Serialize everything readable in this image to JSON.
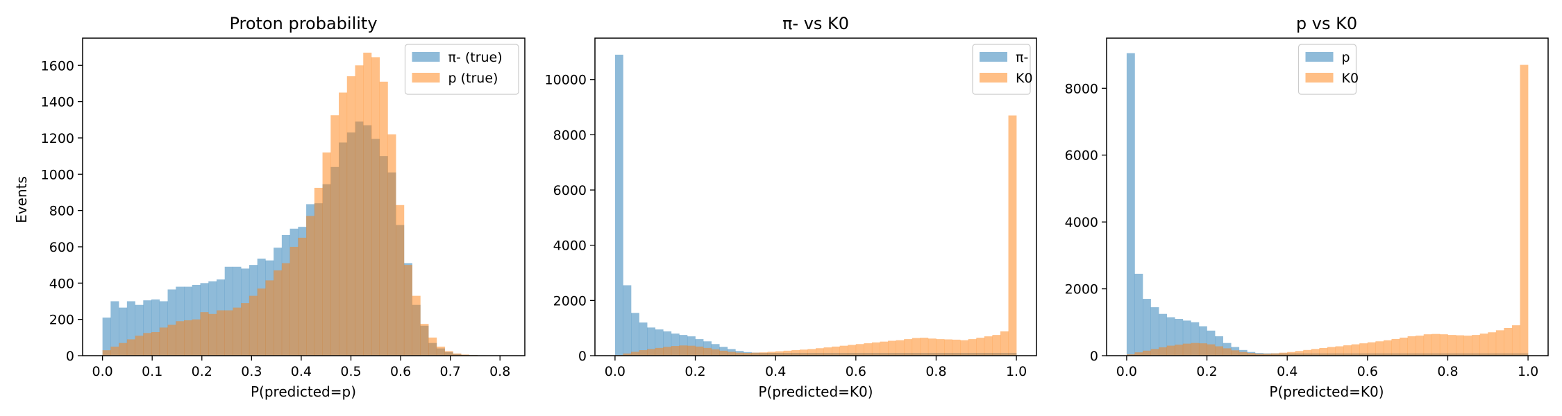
{
  "colors": {
    "series1": "#1f77b4",
    "series2": "#ff7f0e",
    "alpha": 0.5
  },
  "chart_data": [
    {
      "type": "bar",
      "title": "Proton probability",
      "xlabel": "P(predicted=p)",
      "ylabel": "Events",
      "xlim": [
        -0.04,
        0.85
      ],
      "ylim": [
        0,
        1750
      ],
      "xticks": [
        0.0,
        0.1,
        0.2,
        0.3,
        0.4,
        0.5,
        0.6,
        0.7,
        0.8
      ],
      "xtick_labels": [
        "0.0",
        "0.1",
        "0.2",
        "0.3",
        "0.4",
        "0.5",
        "0.6",
        "0.7",
        "0.8"
      ],
      "yticks": [
        0,
        200,
        400,
        600,
        800,
        1000,
        1200,
        1400,
        1600
      ],
      "ytick_labels": [
        "0",
        "200",
        "400",
        "600",
        "800",
        "1000",
        "1200",
        "1400",
        "1600"
      ],
      "legend_position": "upper right",
      "bin_start": 0.0,
      "bin_width": 0.0164,
      "series": [
        {
          "name": "π- (true)",
          "values": [
            210,
            300,
            265,
            300,
            280,
            305,
            310,
            300,
            365,
            380,
            380,
            390,
            400,
            410,
            420,
            490,
            490,
            480,
            500,
            535,
            525,
            595,
            665,
            700,
            710,
            835,
            840,
            945,
            1040,
            1175,
            1230,
            1290,
            1270,
            1195,
            1100,
            1010,
            720,
            510,
            280,
            165,
            70,
            40,
            20,
            10,
            5,
            3,
            2,
            1,
            0,
            0
          ]
        },
        {
          "name": "p (true)",
          "values": [
            30,
            50,
            70,
            90,
            110,
            125,
            130,
            155,
            170,
            190,
            195,
            200,
            240,
            230,
            250,
            250,
            265,
            290,
            330,
            370,
            415,
            470,
            510,
            600,
            650,
            770,
            925,
            1120,
            1325,
            1450,
            1540,
            1600,
            1670,
            1645,
            1510,
            1220,
            830,
            500,
            330,
            175,
            100,
            50,
            25,
            12,
            6,
            3,
            2,
            1,
            0,
            0
          ]
        }
      ]
    },
    {
      "type": "bar",
      "title": "π- vs K0",
      "xlabel": "P(predicted=K0)",
      "ylabel": "",
      "xlim": [
        -0.05,
        1.05
      ],
      "ylim": [
        0,
        11500
      ],
      "xticks": [
        0.0,
        0.2,
        0.4,
        0.6,
        0.8,
        1.0
      ],
      "xtick_labels": [
        "0.0",
        "0.2",
        "0.4",
        "0.6",
        "0.8",
        "1.0"
      ],
      "yticks": [
        0,
        2000,
        4000,
        6000,
        8000,
        10000
      ],
      "ytick_labels": [
        "0",
        "2000",
        "4000",
        "6000",
        "8000",
        "10000"
      ],
      "legend_position": "upper right",
      "bin_start": 0.0,
      "bin_width": 0.02,
      "series": [
        {
          "name": "π-",
          "values": [
            10900,
            2550,
            1550,
            1200,
            1020,
            950,
            880,
            800,
            750,
            700,
            600,
            520,
            420,
            320,
            240,
            170,
            130,
            110,
            100,
            100,
            100,
            100,
            100,
            100,
            100,
            100,
            100,
            100,
            100,
            100,
            100,
            100,
            100,
            100,
            100,
            100,
            100,
            100,
            100,
            100,
            100,
            100,
            100,
            100,
            100,
            100,
            100,
            100,
            100,
            100
          ]
        },
        {
          "name": "K0",
          "values": [
            20,
            80,
            140,
            200,
            240,
            280,
            320,
            350,
            370,
            360,
            330,
            280,
            230,
            180,
            140,
            110,
            100,
            110,
            120,
            140,
            160,
            180,
            200,
            220,
            240,
            270,
            300,
            330,
            360,
            390,
            420,
            450,
            480,
            510,
            540,
            560,
            600,
            640,
            650,
            620,
            600,
            590,
            580,
            560,
            600,
            650,
            700,
            750,
            880,
            8700
          ]
        }
      ]
    },
    {
      "type": "bar",
      "title": "p vs K0",
      "xlabel": "P(predicted=K0)",
      "ylabel": "",
      "xlim": [
        -0.05,
        1.05
      ],
      "ylim": [
        0,
        9500
      ],
      "xticks": [
        0.0,
        0.2,
        0.4,
        0.6,
        0.8,
        1.0
      ],
      "xtick_labels": [
        "0.0",
        "0.2",
        "0.4",
        "0.6",
        "0.8",
        "1.0"
      ],
      "yticks": [
        0,
        2000,
        4000,
        6000,
        8000
      ],
      "ytick_labels": [
        "0",
        "2000",
        "4000",
        "6000",
        "8000"
      ],
      "legend_position": "upper center",
      "bin_start": 0.0,
      "bin_width": 0.02,
      "series": [
        {
          "name": "p",
          "values": [
            9050,
            2450,
            1700,
            1450,
            1250,
            1150,
            1100,
            1050,
            1000,
            880,
            750,
            580,
            380,
            260,
            170,
            110,
            80,
            70,
            70,
            70,
            70,
            70,
            70,
            70,
            70,
            70,
            70,
            70,
            70,
            70,
            70,
            70,
            70,
            70,
            70,
            70,
            70,
            70,
            70,
            70,
            70,
            70,
            70,
            70,
            70,
            70,
            70,
            70,
            70,
            70
          ]
        },
        {
          "name": "K0",
          "values": [
            40,
            100,
            150,
            200,
            250,
            300,
            330,
            360,
            380,
            370,
            340,
            280,
            220,
            160,
            110,
            80,
            60,
            60,
            70,
            90,
            110,
            140,
            170,
            200,
            230,
            260,
            280,
            310,
            340,
            370,
            400,
            430,
            460,
            500,
            540,
            580,
            600,
            640,
            650,
            640,
            620,
            610,
            600,
            620,
            660,
            700,
            760,
            830,
            910,
            8700
          ]
        }
      ]
    }
  ]
}
